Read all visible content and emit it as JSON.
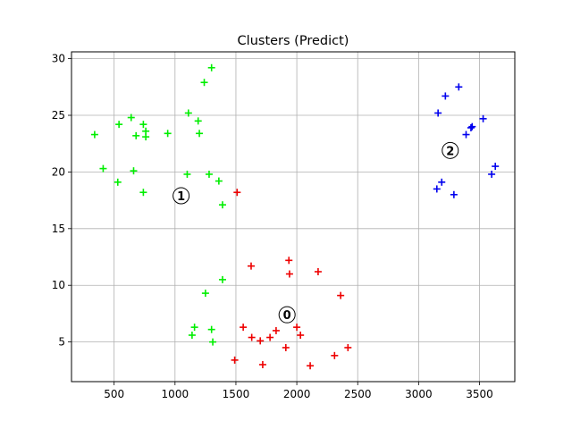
{
  "chart_data": {
    "type": "scatter",
    "title": "Clusters (Predict)",
    "xlabel": "",
    "ylabel": "",
    "xlim": [
      150,
      3790
    ],
    "ylim": [
      1.5,
      30.6
    ],
    "xticks": [
      500,
      1000,
      1500,
      2000,
      2500,
      3000,
      3500
    ],
    "yticks": [
      5,
      10,
      15,
      20,
      25,
      30
    ],
    "grid": true,
    "marker": "+",
    "series": [
      {
        "cluster": "0",
        "color": "#ee0000",
        "points": [
          [
            1510,
            18.2
          ],
          [
            1625,
            11.7
          ],
          [
            1935,
            12.2
          ],
          [
            1940,
            11.0
          ],
          [
            2175,
            11.2
          ],
          [
            2360,
            9.1
          ],
          [
            1560,
            6.3
          ],
          [
            1630,
            5.4
          ],
          [
            1700,
            5.1
          ],
          [
            1780,
            5.4
          ],
          [
            1830,
            6.0
          ],
          [
            1910,
            4.5
          ],
          [
            2000,
            6.3
          ],
          [
            2030,
            5.6
          ],
          [
            2420,
            4.5
          ],
          [
            2310,
            3.8
          ],
          [
            1490,
            3.4
          ],
          [
            1720,
            3.0
          ],
          [
            2110,
            2.9
          ]
        ]
      },
      {
        "cluster": "1",
        "color": "#00ee00",
        "points": [
          [
            1300,
            29.2
          ],
          [
            1240,
            27.9
          ],
          [
            1110,
            25.2
          ],
          [
            1190,
            24.5
          ],
          [
            1200,
            23.4
          ],
          [
            640,
            24.8
          ],
          [
            540,
            24.2
          ],
          [
            740,
            24.2
          ],
          [
            760,
            23.6
          ],
          [
            760,
            23.1
          ],
          [
            680,
            23.2
          ],
          [
            940,
            23.4
          ],
          [
            340,
            23.3
          ],
          [
            410,
            20.3
          ],
          [
            660,
            20.1
          ],
          [
            1100,
            19.8
          ],
          [
            1280,
            19.8
          ],
          [
            1360,
            19.2
          ],
          [
            530,
            19.1
          ],
          [
            740,
            18.2
          ],
          [
            1390,
            17.1
          ],
          [
            1390,
            10.5
          ],
          [
            1250,
            9.3
          ],
          [
            1160,
            6.3
          ],
          [
            1140,
            5.6
          ],
          [
            1300,
            6.1
          ],
          [
            1310,
            5.0
          ]
        ]
      },
      {
        "cluster": "2",
        "color": "#0000ee",
        "points": [
          [
            3330,
            27.5
          ],
          [
            3220,
            26.7
          ],
          [
            3160,
            25.2
          ],
          [
            3530,
            24.7
          ],
          [
            3440,
            24.0
          ],
          [
            3430,
            23.9
          ],
          [
            3390,
            23.3
          ],
          [
            3630,
            20.5
          ],
          [
            3600,
            19.8
          ],
          [
            3190,
            19.1
          ],
          [
            3150,
            18.5
          ],
          [
            3290,
            18.0
          ]
        ]
      }
    ],
    "centers": [
      {
        "label": "0",
        "x": 1920,
        "y": 7.4
      },
      {
        "label": "1",
        "x": 1050,
        "y": 17.9
      },
      {
        "label": "2",
        "x": 3260,
        "y": 21.9
      }
    ]
  }
}
